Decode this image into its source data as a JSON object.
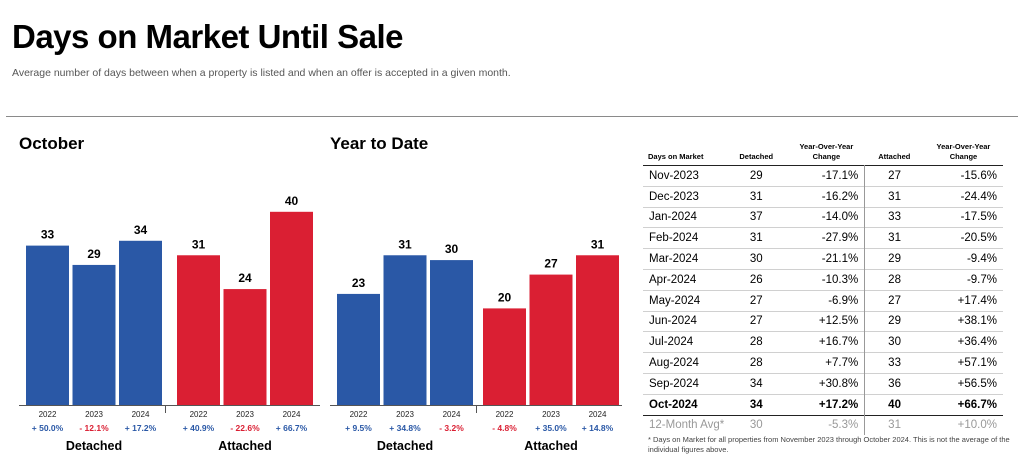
{
  "header": {
    "title": "Days on Market Until Sale",
    "subtitle": "Average number of days between when a property is listed and when an offer is accepted in a given month."
  },
  "colors": {
    "detached": "#2A58A6",
    "attached": "#DA1F33",
    "positive_change": "#2A58A6",
    "negative_change": "#DA1F33"
  },
  "chart_data": [
    {
      "type": "bar",
      "title": "October",
      "ylim": [
        0,
        46
      ],
      "grid": false,
      "groups": [
        {
          "name": "Detached",
          "color": "#2A58A6",
          "categories": [
            "2022",
            "2023",
            "2024"
          ],
          "values": [
            33,
            29,
            34
          ],
          "changes": [
            "+ 50.0%",
            "- 12.1%",
            "+ 17.2%"
          ]
        },
        {
          "name": "Attached",
          "color": "#DA1F33",
          "categories": [
            "2022",
            "2023",
            "2024"
          ],
          "values": [
            31,
            24,
            40
          ],
          "changes": [
            "+ 40.9%",
            "- 22.6%",
            "+ 66.7%"
          ]
        }
      ]
    },
    {
      "type": "bar",
      "title": "Year to Date",
      "ylim": [
        0,
        46
      ],
      "grid": false,
      "groups": [
        {
          "name": "Detached",
          "color": "#2A58A6",
          "categories": [
            "2022",
            "2023",
            "2024"
          ],
          "values": [
            23,
            31,
            30
          ],
          "changes": [
            "+ 9.5%",
            "+ 34.8%",
            "- 3.2%"
          ]
        },
        {
          "name": "Attached",
          "color": "#DA1F33",
          "categories": [
            "2022",
            "2023",
            "2024"
          ],
          "values": [
            20,
            27,
            31
          ],
          "changes": [
            "- 4.8%",
            "+ 35.0%",
            "+ 14.8%"
          ]
        }
      ]
    },
    {
      "type": "table",
      "columns": [
        "Days on Market",
        "Detached",
        "Year-Over-Year Change",
        "Attached",
        "Year-Over-Year Change"
      ],
      "rows": [
        [
          "Nov-2023",
          "29",
          "-17.1%",
          "27",
          "-15.6%"
        ],
        [
          "Dec-2023",
          "31",
          "-16.2%",
          "31",
          "-24.4%"
        ],
        [
          "Jan-2024",
          "37",
          "-14.0%",
          "33",
          "-17.5%"
        ],
        [
          "Feb-2024",
          "31",
          "-27.9%",
          "31",
          "-20.5%"
        ],
        [
          "Mar-2024",
          "30",
          "-21.1%",
          "29",
          "-9.4%"
        ],
        [
          "Apr-2024",
          "26",
          "-10.3%",
          "28",
          "-9.7%"
        ],
        [
          "May-2024",
          "27",
          "-6.9%",
          "27",
          "+17.4%"
        ],
        [
          "Jun-2024",
          "27",
          "+12.5%",
          "29",
          "+38.1%"
        ],
        [
          "Jul-2024",
          "28",
          "+16.7%",
          "30",
          "+36.4%"
        ],
        [
          "Aug-2024",
          "28",
          "+7.7%",
          "33",
          "+57.1%"
        ],
        [
          "Sep-2024",
          "34",
          "+30.8%",
          "36",
          "+56.5%"
        ],
        [
          "Oct-2024",
          "34",
          "+17.2%",
          "40",
          "+66.7%"
        ]
      ],
      "bold_row": "Oct-2024",
      "footer": [
        "12-Month Avg*",
        "30",
        "-5.3%",
        "31",
        "+10.0%"
      ],
      "footnote": "* Days on Market for all properties from November 2023 through October 2024. This is not the average of the individual figures above."
    }
  ]
}
